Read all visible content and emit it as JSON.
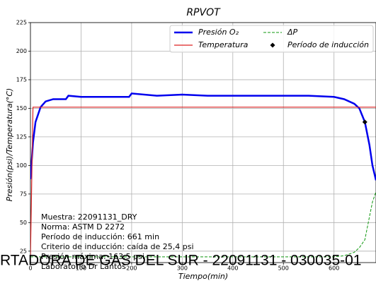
{
  "chart_data": {
    "type": "line",
    "title": "RPVOT",
    "x_label": "Tiempo(min)",
    "y_label": "Presión(psi)/Temperatura(°C)",
    "xlim": [
      0,
      683
    ],
    "ylim": [
      15,
      225
    ],
    "xticks": [
      0,
      100,
      200,
      300,
      400,
      500,
      600
    ],
    "yticks": [
      25,
      50,
      75,
      100,
      125,
      150,
      175,
      200,
      225
    ],
    "grid": true,
    "legend": "upper right",
    "x": [
      0,
      5,
      10,
      20,
      30,
      45,
      60,
      70,
      75,
      100,
      150,
      195,
      200,
      250,
      300,
      350,
      400,
      450,
      500,
      550,
      600,
      620,
      640,
      650,
      661,
      670,
      676,
      683
    ],
    "series": [
      {
        "name": "Presión O₂",
        "color": "#0000ee",
        "style": "solid",
        "values": [
          88,
          120,
          138,
          151,
          156,
          158,
          158,
          158,
          161,
          160,
          160,
          160,
          163,
          161,
          162,
          161,
          161,
          161,
          161,
          161,
          160,
          158,
          154,
          150,
          138,
          118,
          100,
          87
        ]
      },
      {
        "name": "Temperatura",
        "color": "#dd2222",
        "style": "solid",
        "values": [
          20,
          151,
          151,
          151,
          151,
          151,
          151,
          151,
          151,
          151,
          151,
          151,
          151,
          151,
          151,
          151,
          151,
          151,
          151,
          151,
          151,
          151,
          151,
          151,
          151,
          151,
          151,
          151
        ]
      },
      {
        "name": "ΔP",
        "color": "#119911",
        "style": "dashed",
        "values": [
          20,
          20,
          20,
          20,
          20,
          20,
          20,
          20,
          20,
          20,
          20,
          20,
          20,
          20,
          20,
          20,
          20,
          20,
          20,
          20,
          20,
          21,
          24,
          28,
          35,
          55,
          68,
          77
        ]
      }
    ],
    "points": [
      {
        "name": "Período de inducción",
        "color": "#000000",
        "x": 661,
        "y": 138
      }
    ],
    "annotation": [
      "Muestra: 22091131_DRY",
      "Norma: ASTM D 2272",
      "Período de inducción: 661 min",
      "Criterio de inducción: caída de 25,4 psi",
      "Presión máxima: 163,5 psi",
      "Laboratorio Dr Lantos"
    ],
    "watermark": "RTADORA DE GAS DEL SUR - 22091131 - 030035-01"
  }
}
